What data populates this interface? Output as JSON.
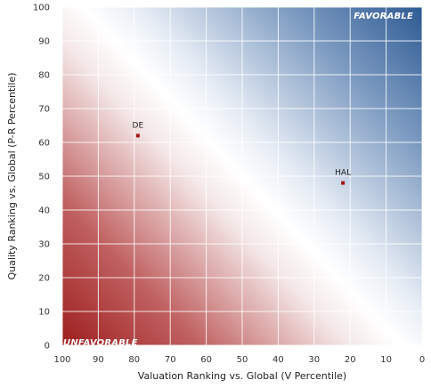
{
  "chart_data": {
    "type": "scatter",
    "xlabel": "Valuation Ranking vs. Global (V Percentile)",
    "ylabel": "Quality Ranking vs. Global (P-R Percentile)",
    "xlim": [
      100,
      0
    ],
    "ylim": [
      0,
      100
    ],
    "x_reversed": true,
    "x_ticks": [
      100,
      90,
      80,
      70,
      60,
      50,
      40,
      30,
      20,
      10,
      0
    ],
    "y_ticks": [
      0,
      10,
      20,
      30,
      40,
      50,
      60,
      70,
      80,
      90,
      100
    ],
    "grid": true,
    "background": "diagonal gradient from red (bottom-left) through white to blue (top-right)",
    "colors": {
      "unfavorable": "#9e1f1f",
      "neutral": "#ffffff",
      "favorable": "#2e5a93",
      "marker": "#a01818",
      "grid": "#ffffff"
    },
    "zones": {
      "top_right": "FAVORABLE",
      "bottom_left": "UNFAVORABLE"
    },
    "points": [
      {
        "label": "DE",
        "x": 79,
        "y": 62
      },
      {
        "label": "HAL",
        "x": 22,
        "y": 48
      }
    ]
  }
}
